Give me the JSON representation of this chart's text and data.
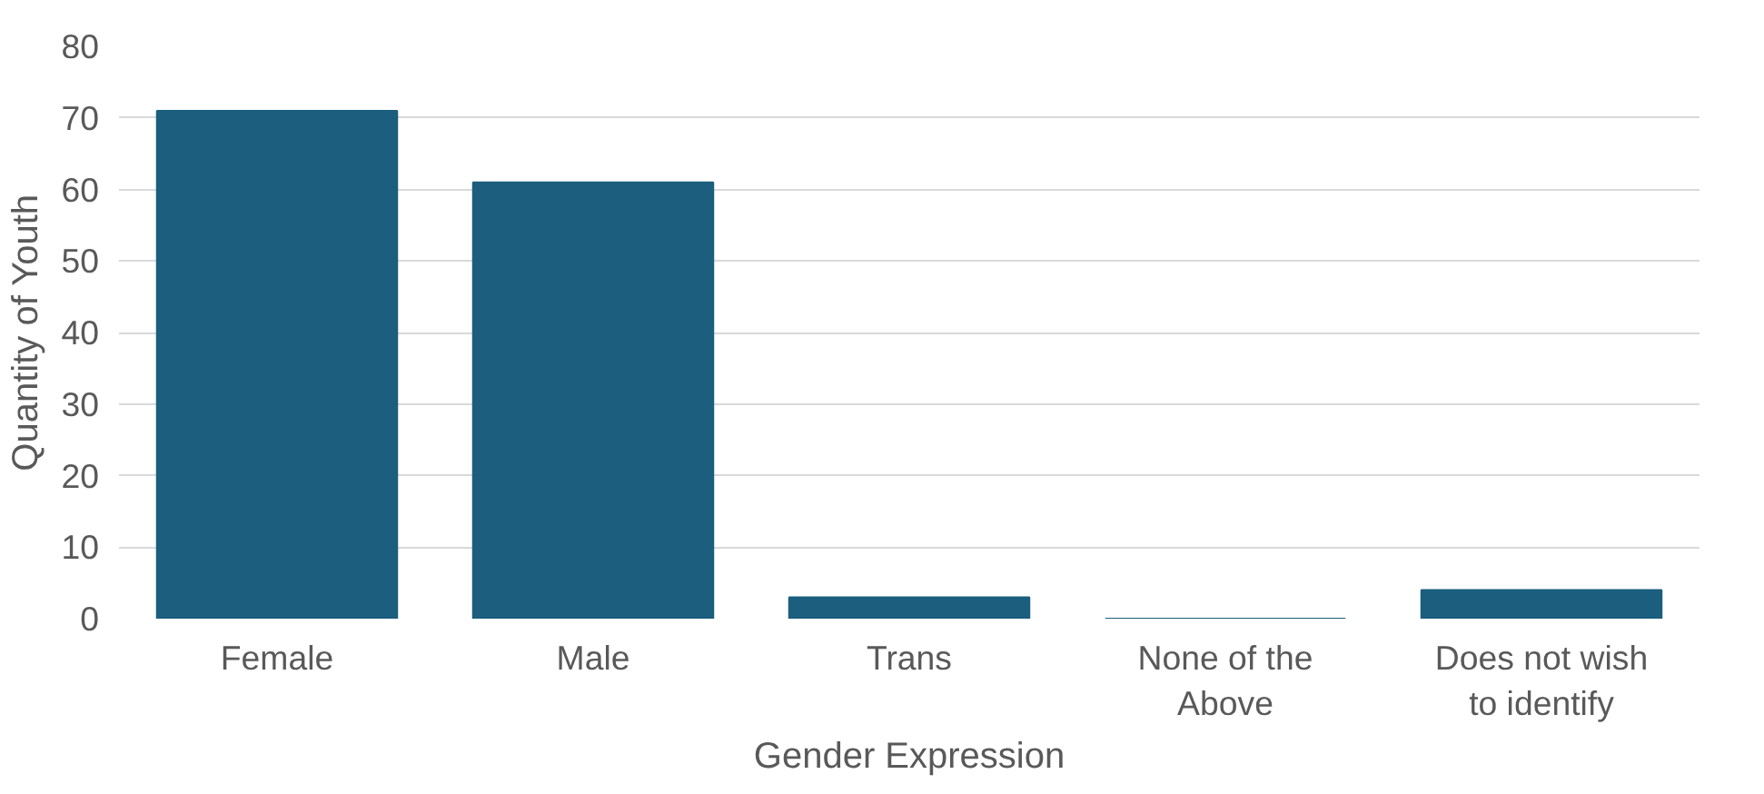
{
  "chart_data": {
    "type": "bar",
    "xlabel": "Gender Expression",
    "ylabel": "Quantity of Youth",
    "categories": [
      "Female",
      "Male",
      "Trans",
      "None of the Above",
      "Does not wish to identify"
    ],
    "values": [
      71,
      61,
      3,
      0,
      4
    ],
    "color": "#1b5e7e",
    "ylim": [
      0,
      80
    ],
    "yticks": [
      0,
      10,
      20,
      30,
      40,
      50,
      60,
      70,
      80
    ],
    "grid": "y"
  }
}
